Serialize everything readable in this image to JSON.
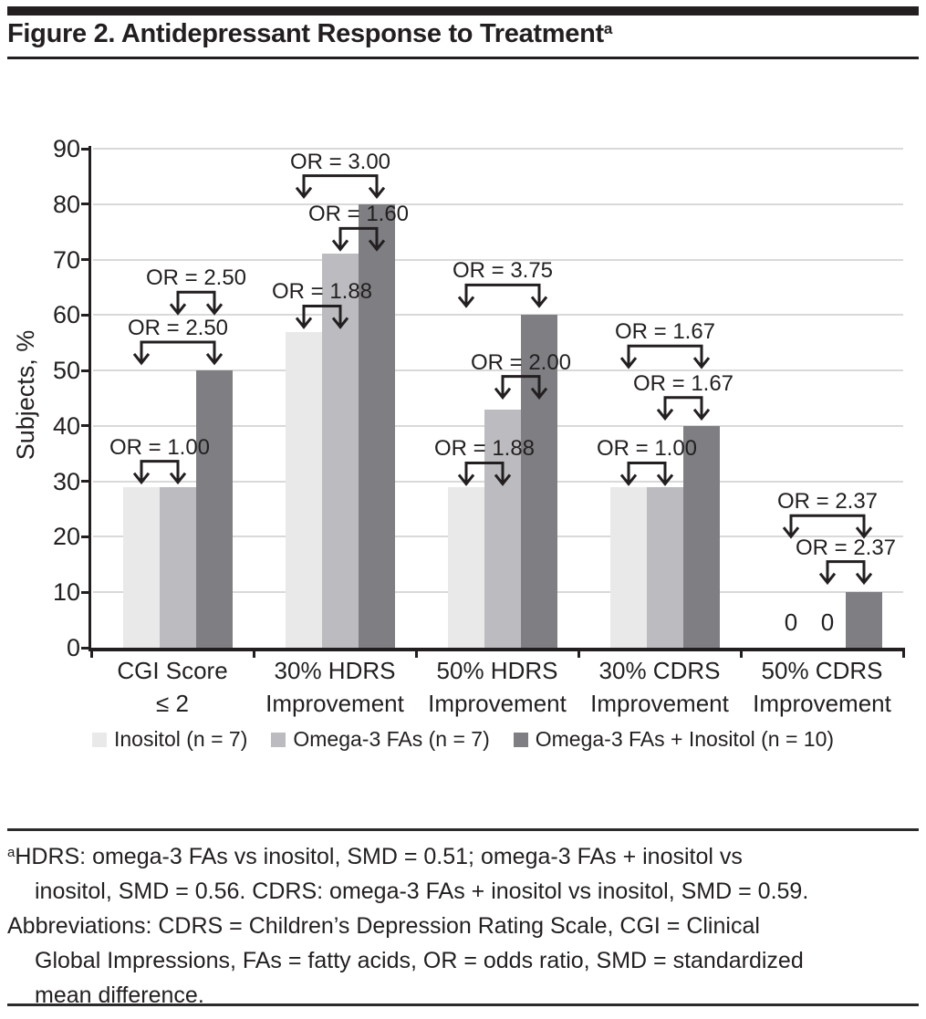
{
  "figure": {
    "title": "Figure 2. Antidepressant Response to Treatment",
    "title_superscript": "a"
  },
  "chart_data": {
    "type": "bar",
    "title": "Figure 2. Antidepressant Response to Treatment",
    "ylabel": "Subjects, %",
    "xlabel": "",
    "ylim": [
      0,
      90
    ],
    "ytick_interval": 10,
    "grid": true,
    "legend_position": "bottom",
    "categories": [
      "CGI Score\n≤ 2",
      "30% HDRS\nImprovement",
      "50% HDRS\nImprovement",
      "30% CDRS\nImprovement",
      "50% CDRS\nImprovement"
    ],
    "series": [
      {
        "name": "Inositol (n = 7)",
        "color": "#e9e9ea",
        "values": [
          29,
          57,
          29,
          29,
          0
        ]
      },
      {
        "name": "Omega-3 FAs (n = 7)",
        "color": "#bcbcc0",
        "values": [
          29,
          71,
          43,
          29,
          0
        ]
      },
      {
        "name": "Omega-3 FAs + Inositol (n = 10)",
        "color": "#7f7f83",
        "values": [
          50,
          80,
          60,
          40,
          10
        ]
      }
    ],
    "annotations": [
      {
        "group": 0,
        "label": "OR = 1.00",
        "from_bar": 0,
        "to_bar": 1,
        "tip_v": 30.0
      },
      {
        "group": 0,
        "label": "OR = 2.50",
        "from_bar": 0,
        "to_bar": 2,
        "tip_v": 51.5
      },
      {
        "group": 0,
        "label": "OR = 2.50",
        "from_bar": 1,
        "to_bar": 2,
        "tip_v": 60.5
      },
      {
        "group": 1,
        "label": "OR = 1.88",
        "from_bar": 0,
        "to_bar": 1,
        "tip_v": 58.0
      },
      {
        "group": 1,
        "label": "OR = 1.60",
        "from_bar": 1,
        "to_bar": 2,
        "tip_v": 72.0
      },
      {
        "group": 1,
        "label": "OR = 3.00",
        "from_bar": 0,
        "to_bar": 2,
        "tip_v": 81.5
      },
      {
        "group": 2,
        "label": "OR = 1.88",
        "from_bar": 0,
        "to_bar": 1,
        "tip_v": 29.7
      },
      {
        "group": 2,
        "label": "OR = 2.00",
        "from_bar": 1,
        "to_bar": 2,
        "tip_v": 45.3
      },
      {
        "group": 2,
        "label": "OR = 3.75",
        "from_bar": 0,
        "to_bar": 2,
        "tip_v": 61.8
      },
      {
        "group": 3,
        "label": "OR = 1.00",
        "from_bar": 0,
        "to_bar": 1,
        "tip_v": 29.7
      },
      {
        "group": 3,
        "label": "OR = 1.67",
        "from_bar": 1,
        "to_bar": 2,
        "tip_v": 41.5
      },
      {
        "group": 3,
        "label": "OR = 1.67",
        "from_bar": 0,
        "to_bar": 2,
        "tip_v": 50.8
      },
      {
        "group": 4,
        "label": "OR = 2.37",
        "from_bar": 1,
        "to_bar": 2,
        "tip_v": 11.9
      },
      {
        "group": 4,
        "label": "OR = 2.37",
        "from_bar": 0,
        "to_bar": 2,
        "tip_v": 20.2
      }
    ],
    "zero_labels": [
      {
        "group": 4,
        "bar": 0,
        "text": "0",
        "v": 4.6
      },
      {
        "group": 4,
        "bar": 1,
        "text": "0",
        "v": 4.6
      }
    ],
    "ytick_labels": [
      "0",
      "10",
      "20",
      "30",
      "40",
      "50",
      "60",
      "70",
      "80",
      "90"
    ],
    "colors": {
      "axis": "#231f20",
      "grid": "#d9d9d9",
      "text": "#231f20"
    }
  },
  "footnotes": {
    "fn1_sup": "a",
    "fn1_lines": [
      "HDRS: omega-3 FAs vs inositol, SMD = 0.51; omega-3 FAs + inositol vs",
      "inositol, SMD = 0.56. CDRS: omega-3 FAs + inositol vs inositol, SMD = 0.59."
    ],
    "fn2_lines": [
      "Abbreviations: CDRS = Children’s Depression Rating Scale, CGI = Clinical",
      "Global Impressions, FAs = fatty acids, OR = odds ratio, SMD = standardized",
      "mean difference."
    ]
  }
}
